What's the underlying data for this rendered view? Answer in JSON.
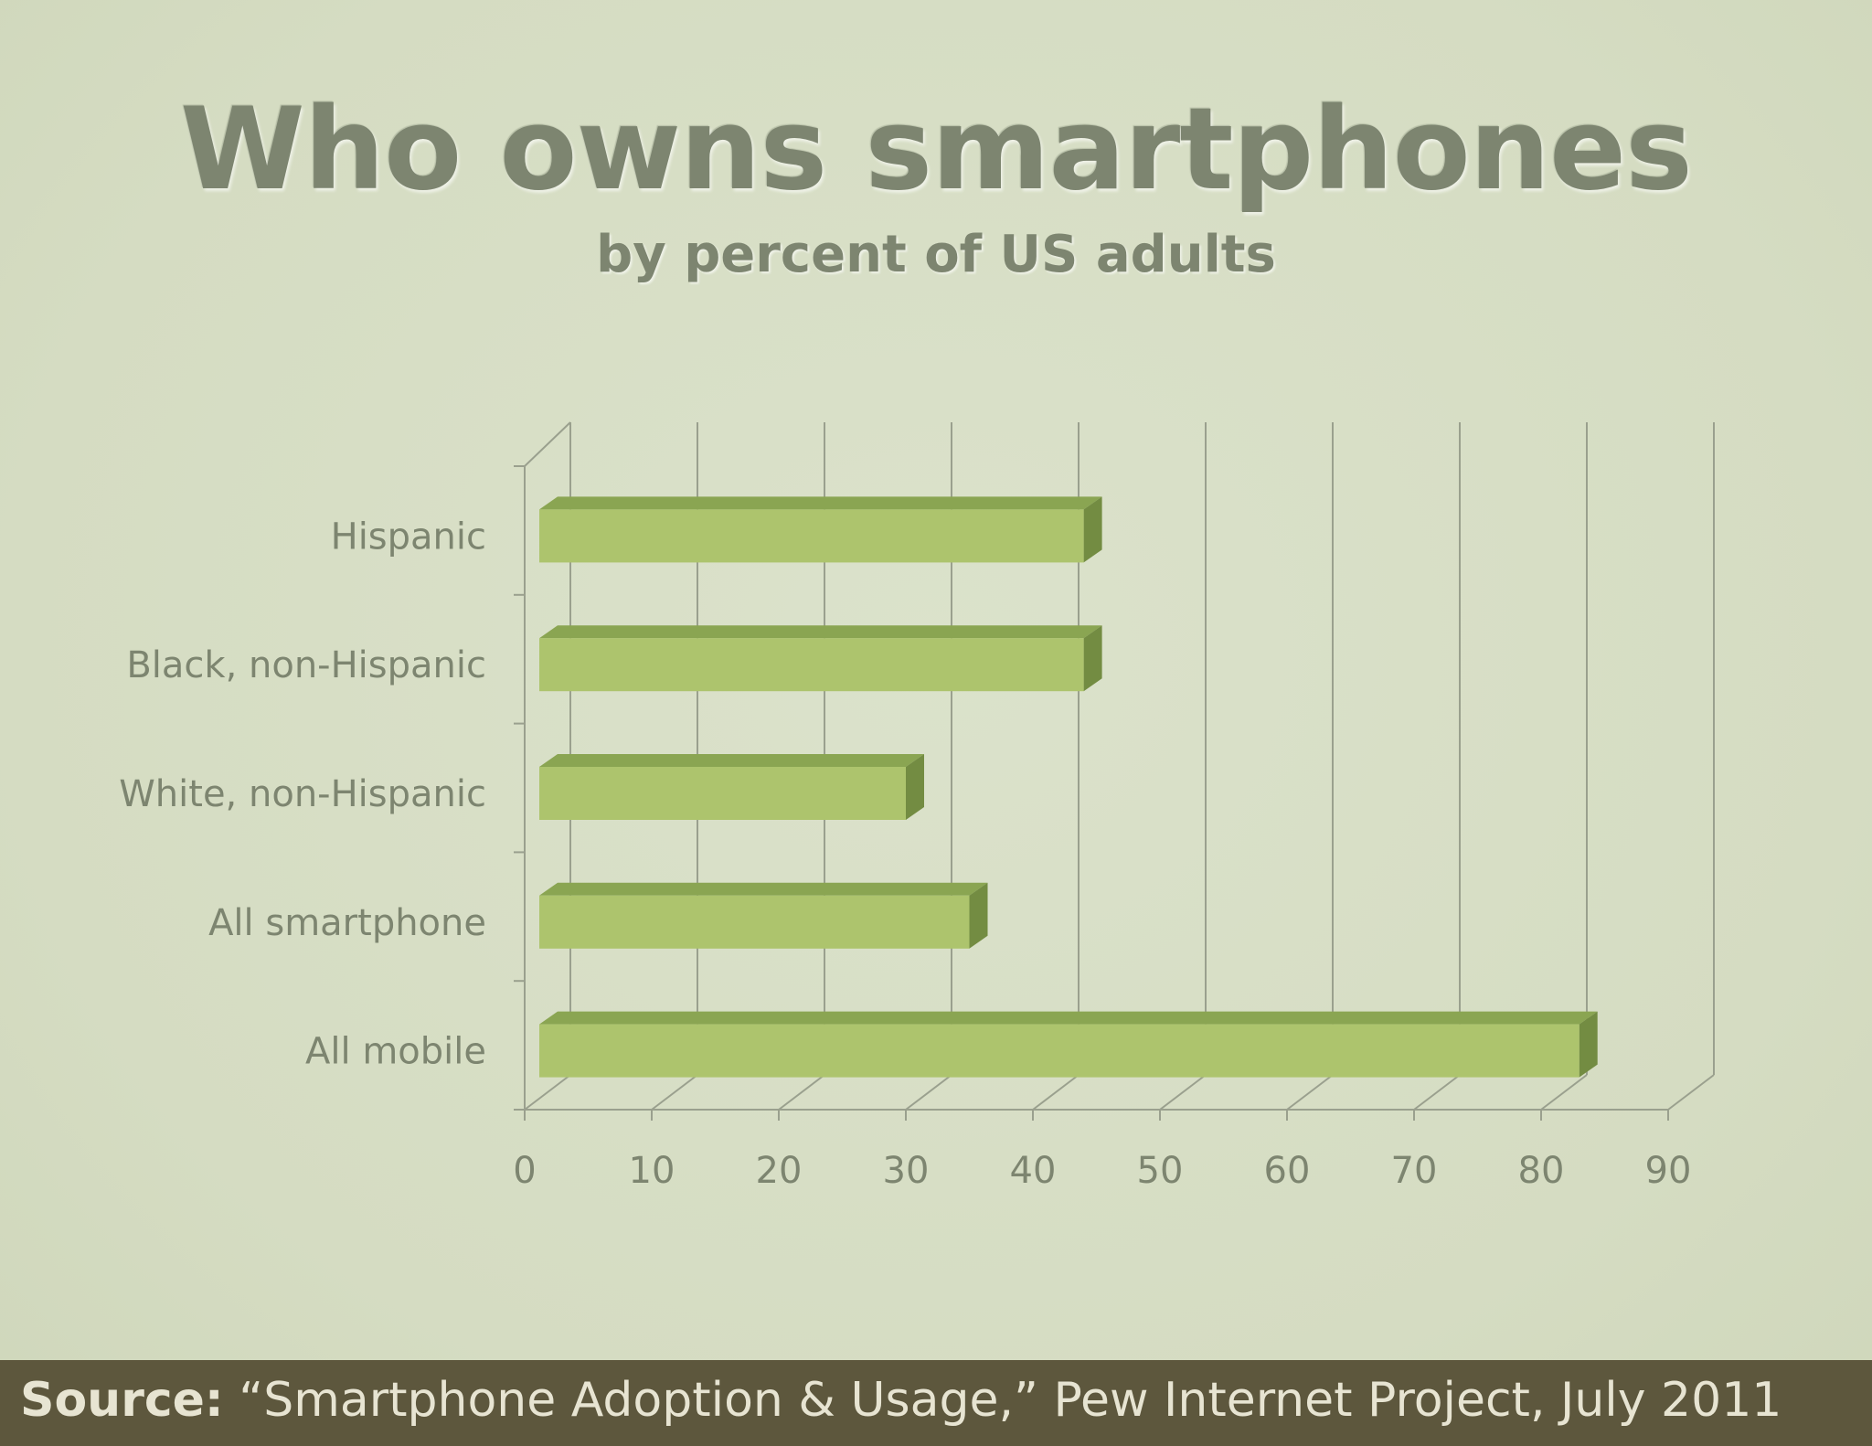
{
  "title": "Who owns smartphones",
  "subtitle": "by percent of US adults",
  "footer": {
    "label": "Source:",
    "text": "“Smartphone Adoption & Usage,” Pew Internet Project, July 2011"
  },
  "chart_data": {
    "type": "bar",
    "orientation": "horizontal",
    "style": "3d",
    "categories": [
      "Hispanic",
      "Black, non-Hispanic",
      "White, non-Hispanic",
      "All smartphone",
      "All mobile"
    ],
    "values": [
      44,
      44,
      30,
      35,
      83
    ],
    "xlim": [
      0,
      90
    ],
    "xticks": [
      "0",
      "10",
      "20",
      "30",
      "40",
      "50",
      "60",
      "70",
      "80",
      "90"
    ],
    "grid": true,
    "legend": "none",
    "colors": {
      "bar_front": "#adc46d",
      "bar_top": "#8aa552",
      "bar_side": "#738c42",
      "axis": "#9aa08e",
      "label": "#7d8570"
    }
  }
}
